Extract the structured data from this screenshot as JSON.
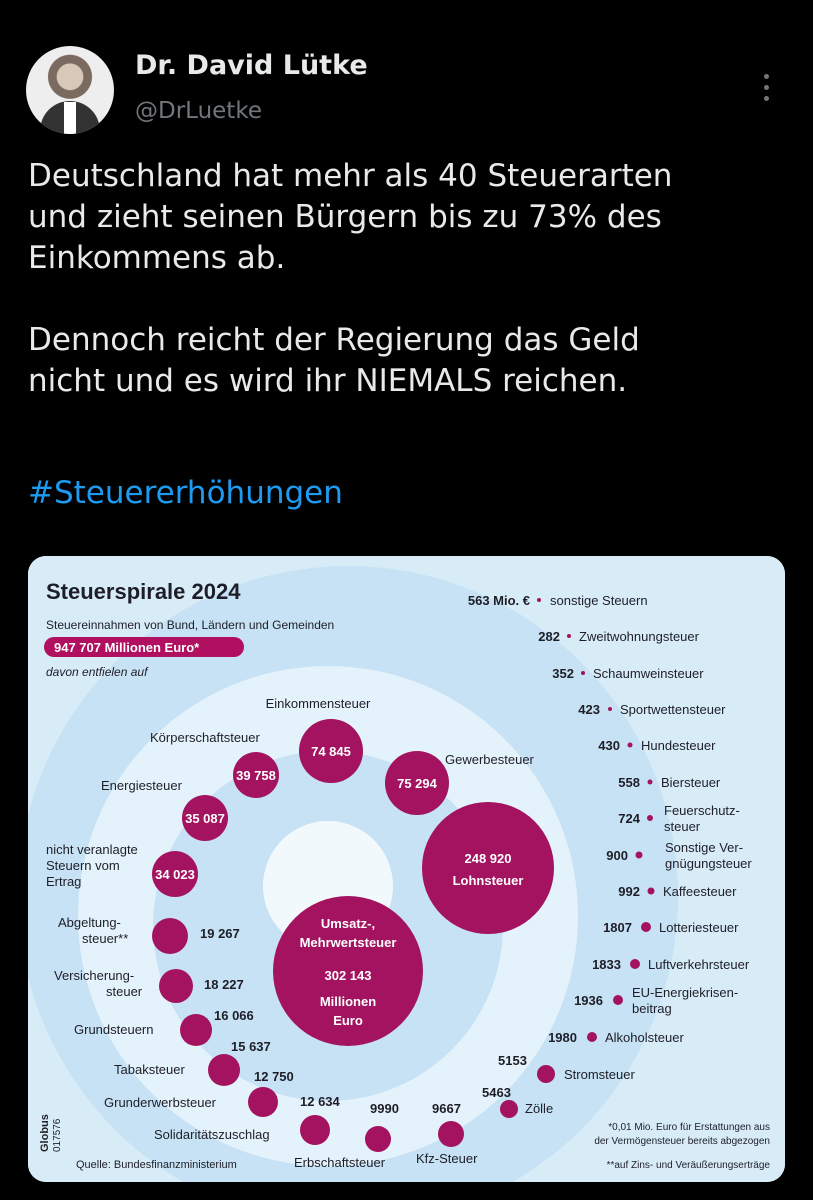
{
  "author": {
    "name": "Dr. David Lütke",
    "handle": "@DrLuetke"
  },
  "tweet": {
    "line1": "Deutschland hat mehr als 40 Steuerarten",
    "line2": "und zieht seinen Bürgern bis zu 73% des",
    "line3": "Einkommens ab.",
    "line4": "Dennoch reicht der Regierung das Geld",
    "line5": "nicht und es wird ihr NIEMALS reichen.",
    "hashtag": "#Steuererhöhungen"
  },
  "chart_data": {
    "type": "bubble-spiral",
    "title": "Steuerspirale 2024",
    "subtitle": "Steuereinnahmen von Bund, Ländern und Gemeinden",
    "total": "947 707 Millionen Euro*",
    "total_caption": "davon entfielen auf",
    "center": {
      "label1": "Umsatz-,",
      "label2": "Mehrwertsteuer",
      "value": "302 143",
      "unit1": "Millionen",
      "unit2": "Euro"
    },
    "lohnsteuer": {
      "value": "248 920",
      "label": "Lohnsteuer"
    },
    "big": [
      {
        "label": "Einkommensteuer",
        "value": "74 845"
      },
      {
        "label": "Gewerbesteuer",
        "value": "75 294"
      },
      {
        "label": "Körperschaftsteuer",
        "value": "39 758"
      },
      {
        "label": "Energiesteuer",
        "value": "35 087"
      },
      {
        "label1": "nicht veranlagte",
        "label2": "Steuern vom",
        "label3": "Ertrag",
        "value": "34 023"
      }
    ],
    "left": [
      {
        "label1": "Abgeltung-",
        "label2": "steuer**",
        "value": "19 267"
      },
      {
        "label1": "Versicherung-",
        "label2": "steuer",
        "value": "18 227"
      },
      {
        "label": "Grundsteuern",
        "value": "16 066"
      },
      {
        "label": "Tabaksteuer",
        "value": "15 637"
      },
      {
        "label": "Grunderwerbsteuer",
        "value": "12 750"
      },
      {
        "label": "Solidaritätszuschlag",
        "value": "12 634"
      },
      {
        "label": "Erbschaftsteuer",
        "value": "9990"
      },
      {
        "label": "Kfz-Steuer",
        "value": "9667"
      },
      {
        "label": "Zölle",
        "value": "5463"
      },
      {
        "label": "Stromsteuer",
        "value": "5153"
      }
    ],
    "right": [
      {
        "value": "563 Mio. €",
        "label": "sonstige Steuern"
      },
      {
        "value": "282",
        "label": "Zweitwohnungsteuer"
      },
      {
        "value": "352",
        "label": "Schaumweinsteuer"
      },
      {
        "value": "423",
        "label": "Sportwettensteuer"
      },
      {
        "value": "430",
        "label": "Hundesteuer"
      },
      {
        "value": "558",
        "label": "Biersteuer"
      },
      {
        "value": "724",
        "label1": "Feuerschutz-",
        "label2": "steuer"
      },
      {
        "value": "900",
        "label1": "Sonstige Ver-",
        "label2": "gnügungsteuer"
      },
      {
        "value": "992",
        "label": "Kaffeesteuer"
      },
      {
        "value": "1807",
        "label": "Lotteriesteuer"
      },
      {
        "value": "1833",
        "label": "Luftverkehrsteuer"
      },
      {
        "value": "1936",
        "label1": "EU-Energiekrisen-",
        "label2": "beitrag"
      },
      {
        "value": "1980",
        "label": "Alkoholsteuer"
      }
    ],
    "source": "Quelle: Bundesfinanzministerium",
    "brand": "Globus",
    "code": "017576",
    "footnote1": "*0,01 Mio. Euro für Erstattungen aus",
    "footnote2": "der Vermögensteuer bereits abgezogen",
    "footnote3": "**auf Zins- und Veräußerungserträge",
    "colors": {
      "bubble": "#a3135f",
      "ring": "#cfe6f5",
      "badge": "#b0105f",
      "link": "#1d9bf0"
    }
  }
}
